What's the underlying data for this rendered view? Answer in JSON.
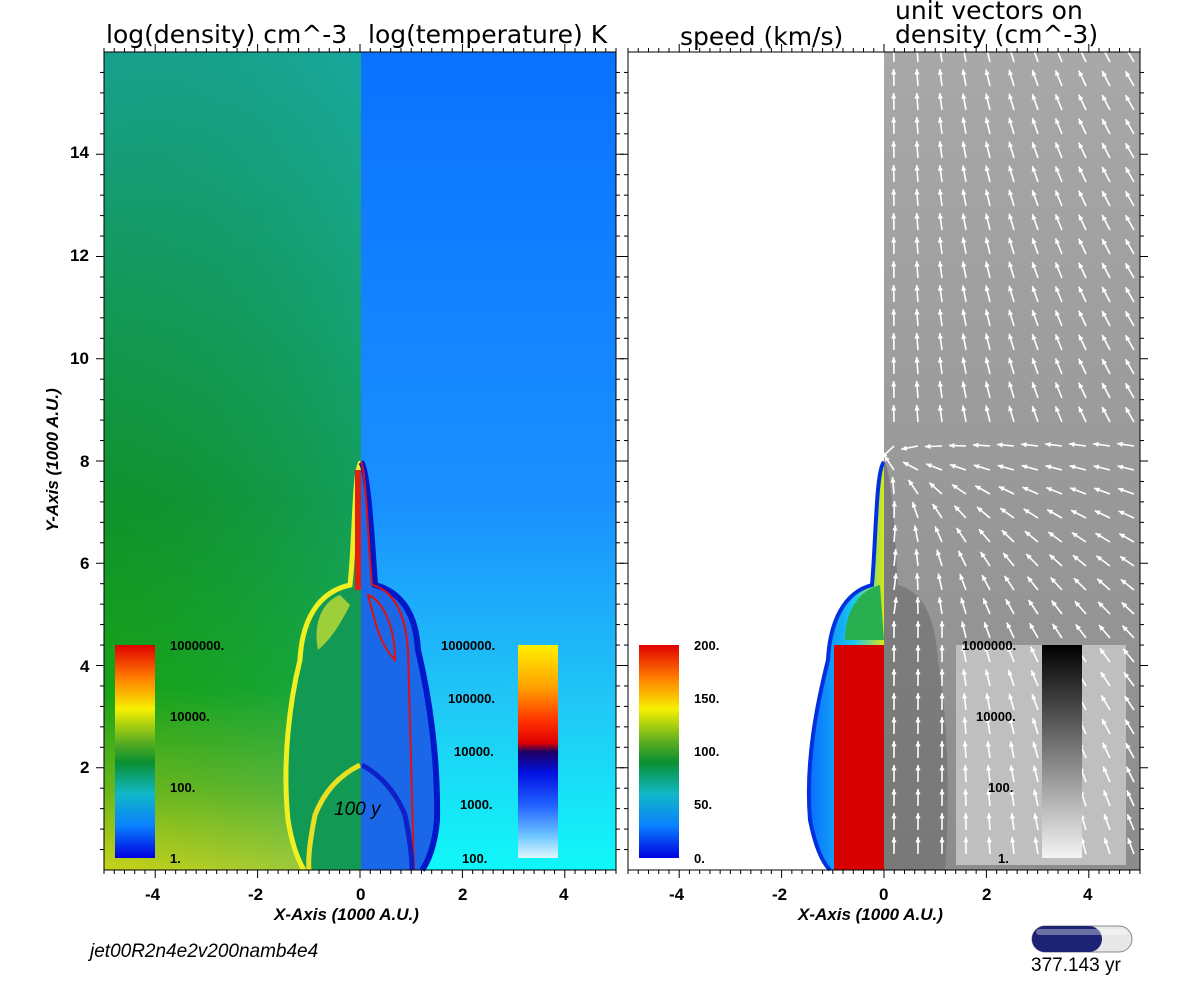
{
  "chart_data": [
    {
      "type": "heatmap",
      "panel": "left",
      "titles": [
        "log(density) cm^-3",
        "log(temperature) K"
      ],
      "xlabel": "X-Axis (1000 A.U.)",
      "ylabel": "Y-Axis (1000 A.U.)",
      "xlim": [
        -5,
        5
      ],
      "ylim": [
        0,
        16
      ],
      "x_ticks": [
        "-4",
        "-2",
        "0",
        "2",
        "4"
      ],
      "y_ticks": [
        "2",
        "4",
        "6",
        "8",
        "10",
        "12",
        "14"
      ],
      "annotation": "100 y",
      "colorbars": [
        {
          "field": "density",
          "labels": [
            "1000000.",
            "10000.",
            "100.",
            "1."
          ]
        },
        {
          "field": "temperature",
          "labels": [
            "1000000.",
            "100000.",
            "10000.",
            "1000.",
            "100."
          ]
        }
      ]
    },
    {
      "type": "heatmap",
      "panel": "right",
      "titles": [
        "speed (km/s)",
        "unit vectors on\ndensity (cm^-3)"
      ],
      "title_line1": "unit vectors on",
      "title_line2": "density (cm^-3)",
      "xlabel": "X-Axis (1000 A.U.)",
      "xlim": [
        -5,
        5
      ],
      "ylim": [
        0,
        16
      ],
      "x_ticks": [
        "-4",
        "-2",
        "0",
        "2",
        "4"
      ],
      "colorbars": [
        {
          "field": "speed",
          "labels": [
            "200.",
            "150.",
            "100.",
            "50.",
            "0."
          ]
        },
        {
          "field": "density",
          "labels": [
            "1000000.",
            "10000.",
            "100.",
            "1."
          ]
        }
      ]
    }
  ],
  "caption": "jet00R2n4e2v200namb4e4",
  "time": {
    "value": 377.143,
    "label": "377.143 yr",
    "progress": 0.7
  },
  "colors": {
    "progress_fill": "#1c2274",
    "progress_empty": "#e8e8e8"
  }
}
